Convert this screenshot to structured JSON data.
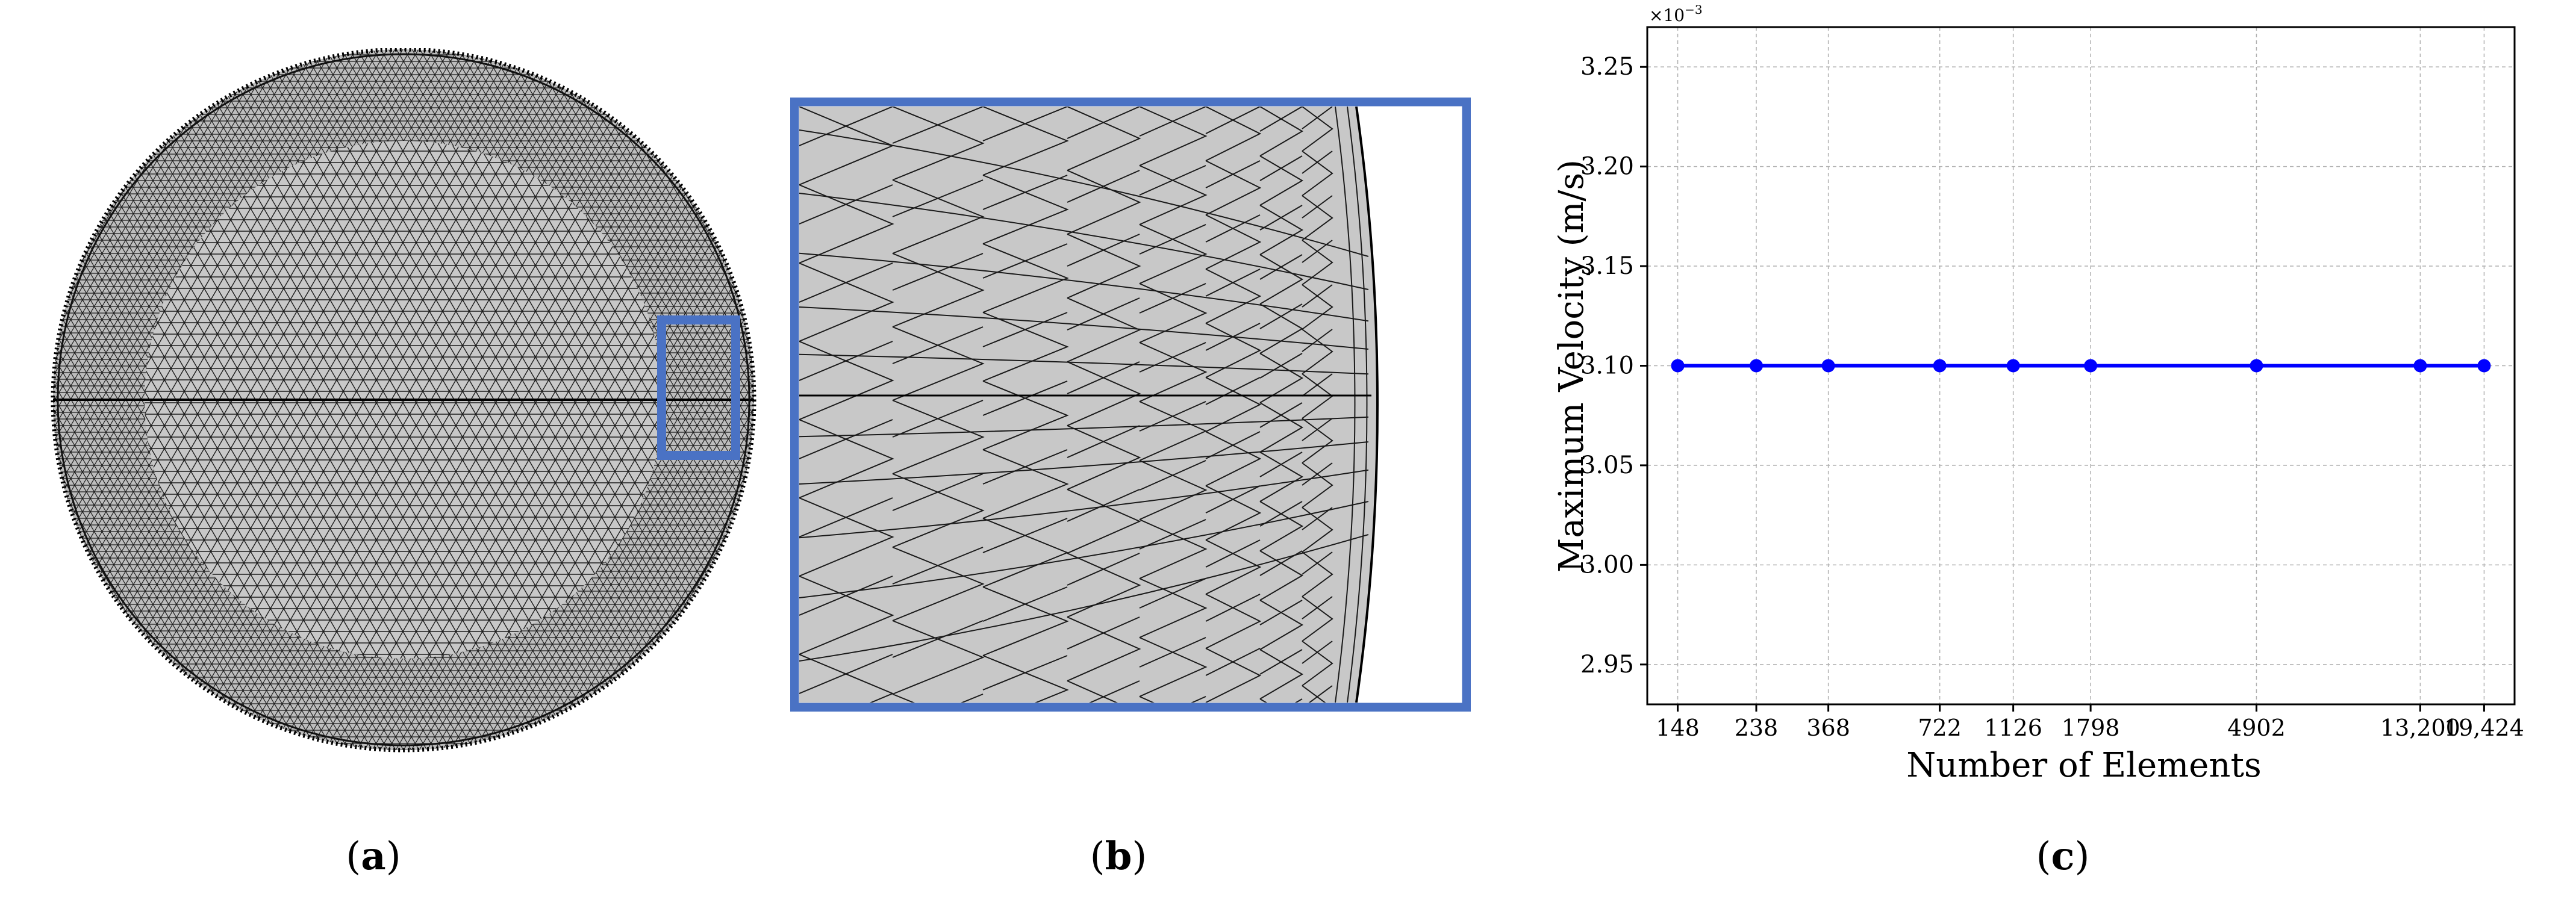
{
  "panels": [
    {
      "id": "a",
      "caption_open": "(",
      "caption_letter": "a",
      "caption_close": ")"
    },
    {
      "id": "b",
      "caption_open": "(",
      "caption_letter": "b",
      "caption_close": ")"
    },
    {
      "id": "c",
      "caption_open": "(",
      "caption_letter": "c",
      "caption_close": ")"
    }
  ],
  "colors": {
    "mesh_fill": "#c8c8c8",
    "mesh_line": "#1a1a1a",
    "zoom_box": "#4a72c4",
    "series": "#0000ff",
    "grid": "#b0b0b0"
  },
  "chart_data": {
    "type": "line",
    "title": "",
    "xlabel": "Number of Elements",
    "ylabel": "Maximum Velocity (m/s)",
    "y_multiplier": "×10",
    "y_multiplier_exp": "−3",
    "x": [
      148,
      238,
      368,
      722,
      1126,
      1798,
      4902,
      13200,
      19424
    ],
    "x_tick_labels": [
      "148",
      "238",
      "368",
      "722",
      "1126",
      "1798",
      "4902",
      "13,200",
      "19,424"
    ],
    "x_scale": "log",
    "ylim": [
      2.93,
      3.27
    ],
    "y_ticks": [
      2.95,
      3.0,
      3.05,
      3.1,
      3.15,
      3.2,
      3.25
    ],
    "y_tick_labels": [
      "2.95",
      "3.00",
      "3.05",
      "3.10",
      "3.15",
      "3.20",
      "3.25"
    ],
    "series": [
      {
        "values": [
          3.1,
          3.1,
          3.1,
          3.1,
          3.1,
          3.1,
          3.1,
          3.1,
          3.1
        ],
        "marker": "circle"
      }
    ],
    "grid": true,
    "grid_style": "dashed",
    "legend": "none"
  }
}
